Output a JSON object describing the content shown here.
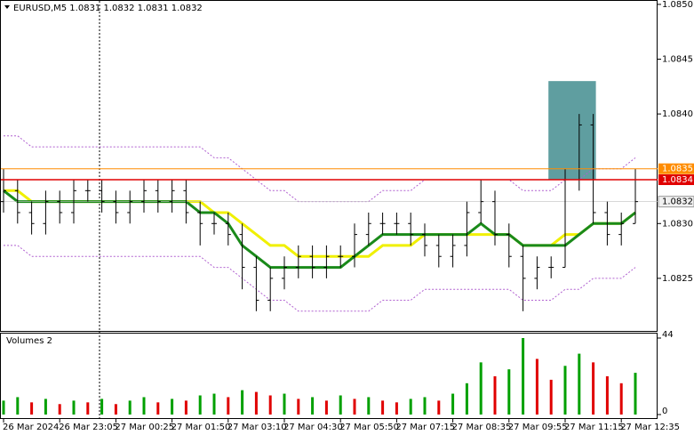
{
  "chart_data": {
    "type": "ohlc",
    "title": "EURUSD,M5  1.0831 1.0832 1.0831 1.0832",
    "categories": [
      "26 Mar 2024",
      null,
      null,
      null,
      "26 Mar 23:05",
      null,
      null,
      null,
      "27 Mar 00:25",
      null,
      null,
      null,
      "27 Mar 01:50",
      null,
      null,
      null,
      "27 Mar 03:10",
      null,
      null,
      null,
      "27 Mar 04:30",
      null,
      null,
      null,
      "27 Mar 05:50",
      null,
      null,
      null,
      "27 Mar 07:15",
      null,
      null,
      null,
      "27 Mar 08:35",
      null,
      null,
      null,
      "27 Mar 09:55",
      null,
      null,
      null,
      "27 Mar 11:15",
      null,
      null,
      null,
      "27 Mar 12:35",
      null
    ],
    "open": [
      1.0832,
      1.0833,
      1.0831,
      1.083,
      1.0832,
      1.0831,
      1.0833,
      1.0833,
      1.0832,
      1.0831,
      1.0832,
      1.0833,
      1.0832,
      1.0833,
      1.0831,
      1.083,
      1.083,
      1.0829,
      1.0826,
      1.0823,
      1.0825,
      1.0826,
      1.0827,
      1.0826,
      1.0827,
      1.0827,
      1.0829,
      1.083,
      1.083,
      1.083,
      1.0829,
      1.0828,
      1.0827,
      1.0828,
      1.0831,
      1.0832,
      1.0829,
      1.0827,
      1.0825,
      1.0826,
      1.0826,
      1.0834,
      1.0839,
      1.0831,
      1.0829,
      1.083
    ],
    "high": [
      1.0835,
      1.0834,
      1.0832,
      1.0833,
      1.0833,
      1.0834,
      1.0834,
      1.0834,
      1.0833,
      1.0833,
      1.0834,
      1.0834,
      1.0834,
      1.0834,
      1.0832,
      1.0831,
      1.0831,
      1.083,
      1.0827,
      1.0826,
      1.0827,
      1.0828,
      1.0828,
      1.0828,
      1.0828,
      1.083,
      1.0831,
      1.0831,
      1.0831,
      1.0831,
      1.083,
      1.0829,
      1.0829,
      1.0832,
      1.0834,
      1.0833,
      1.083,
      1.0828,
      1.0827,
      1.0827,
      1.0835,
      1.084,
      1.084,
      1.0832,
      1.0831,
      1.0835
    ],
    "low": [
      1.0831,
      1.083,
      1.0829,
      1.0829,
      1.083,
      1.083,
      1.0832,
      1.0831,
      1.083,
      1.083,
      1.0831,
      1.0831,
      1.0831,
      1.083,
      1.0828,
      1.0829,
      1.0828,
      1.0824,
      1.0822,
      1.0822,
      1.0824,
      1.0825,
      1.0825,
      1.0825,
      1.0826,
      1.0826,
      1.0828,
      1.0829,
      1.0829,
      1.0828,
      1.0827,
      1.0826,
      1.0826,
      1.0827,
      1.083,
      1.0828,
      1.0826,
      1.0822,
      1.0824,
      1.0825,
      1.0826,
      1.0833,
      1.083,
      1.0828,
      1.0828,
      1.083
    ],
    "close": [
      1.0833,
      1.0831,
      1.083,
      1.0832,
      1.0831,
      1.0833,
      1.0833,
      1.0832,
      1.0831,
      1.0832,
      1.0833,
      1.0832,
      1.0833,
      1.0831,
      1.083,
      1.083,
      1.0829,
      1.0826,
      1.0823,
      1.0825,
      1.0826,
      1.0827,
      1.0826,
      1.0827,
      1.0827,
      1.0829,
      1.083,
      1.083,
      1.083,
      1.0829,
      1.0828,
      1.0827,
      1.0828,
      1.0831,
      1.0832,
      1.0829,
      1.0827,
      1.0825,
      1.0826,
      1.0826,
      1.0834,
      1.0839,
      1.0831,
      1.0829,
      1.083,
      1.0832
    ],
    "bar_color": "#000000",
    "ma_lines": [
      {
        "color": "#f0f000",
        "width": 3,
        "values": [
          1.0833,
          1.0833,
          1.0832,
          1.0832,
          1.0832,
          1.0832,
          1.0832,
          1.0832,
          1.0832,
          1.0832,
          1.0832,
          1.0832,
          1.0832,
          1.0832,
          1.0832,
          1.0831,
          1.0831,
          1.083,
          1.0829,
          1.0828,
          1.0828,
          1.0827,
          1.0827,
          1.0827,
          1.0827,
          1.0827,
          1.0827,
          1.0828,
          1.0828,
          1.0828,
          1.0829,
          1.0829,
          1.0829,
          1.0829,
          1.0829,
          1.0829,
          1.0829,
          1.0828,
          1.0828,
          1.0828,
          1.0829,
          1.0829,
          1.083,
          1.083,
          1.083,
          1.0831
        ]
      },
      {
        "color": "#1a8a1a",
        "width": 3,
        "values": [
          1.0833,
          1.0832,
          1.0832,
          1.0832,
          1.0832,
          1.0832,
          1.0832,
          1.0832,
          1.0832,
          1.0832,
          1.0832,
          1.0832,
          1.0832,
          1.0832,
          1.0831,
          1.0831,
          1.083,
          1.0828,
          1.0827,
          1.0826,
          1.0826,
          1.0826,
          1.0826,
          1.0826,
          1.0826,
          1.0827,
          1.0828,
          1.0829,
          1.0829,
          1.0829,
          1.0829,
          1.0829,
          1.0829,
          1.0829,
          1.083,
          1.0829,
          1.0829,
          1.0828,
          1.0828,
          1.0828,
          1.0828,
          1.0829,
          1.083,
          1.083,
          1.083,
          1.0831
        ]
      },
      {
        "color": "#b060d0",
        "width": 1,
        "dashed": true,
        "values": [
          1.0838,
          1.0838,
          1.0837,
          1.0837,
          1.0837,
          1.0837,
          1.0837,
          1.0837,
          1.0837,
          1.0837,
          1.0837,
          1.0837,
          1.0837,
          1.0837,
          1.0837,
          1.0836,
          1.0836,
          1.0835,
          1.0834,
          1.0833,
          1.0833,
          1.0832,
          1.0832,
          1.0832,
          1.0832,
          1.0832,
          1.0832,
          1.0833,
          1.0833,
          1.0833,
          1.0834,
          1.0834,
          1.0834,
          1.0834,
          1.0834,
          1.0834,
          1.0834,
          1.0833,
          1.0833,
          1.0833,
          1.0834,
          1.0834,
          1.0835,
          1.0835,
          1.0835,
          1.0836
        ]
      },
      {
        "color": "#b060d0",
        "width": 1,
        "dashed": true,
        "values": [
          1.0828,
          1.0828,
          1.0827,
          1.0827,
          1.0827,
          1.0827,
          1.0827,
          1.0827,
          1.0827,
          1.0827,
          1.0827,
          1.0827,
          1.0827,
          1.0827,
          1.0827,
          1.0826,
          1.0826,
          1.0825,
          1.0824,
          1.0823,
          1.0823,
          1.0822,
          1.0822,
          1.0822,
          1.0822,
          1.0822,
          1.0822,
          1.0823,
          1.0823,
          1.0823,
          1.0824,
          1.0824,
          1.0824,
          1.0824,
          1.0824,
          1.0824,
          1.0824,
          1.0823,
          1.0823,
          1.0823,
          1.0824,
          1.0824,
          1.0825,
          1.0825,
          1.0825,
          1.0826
        ]
      }
    ],
    "zone": {
      "from": 39,
      "to": 42,
      "low": 1.0834,
      "high": 1.0843,
      "color": "#5f9ea0"
    },
    "lines": [
      {
        "value": 1.0835,
        "color": "#ff8c00"
      },
      {
        "value": 1.0834,
        "color": "#e00000"
      }
    ],
    "last_price": 1.0832,
    "ylim": [
      1.08202,
      1.08504
    ],
    "yticks": [
      {
        "value": 1.085,
        "label": "1.0850"
      },
      1.0845,
      {
        "value": 1.084,
        "label": "1.0840"
      },
      {
        "value": 1.083,
        "label": "1.0830"
      },
      1.0825
    ],
    "volumes": {
      "title": "Volumes 2",
      "values": [
        8,
        10,
        7,
        9,
        6,
        8,
        7,
        9,
        6,
        8,
        10,
        7,
        9,
        8,
        11,
        12,
        10,
        14,
        13,
        11,
        12,
        9,
        10,
        8,
        11,
        9,
        10,
        8,
        7,
        9,
        10,
        8,
        12,
        18,
        30,
        22,
        26,
        44,
        32,
        20,
        28,
        35,
        30,
        22,
        18,
        24
      ],
      "ylim": [
        0,
        44
      ],
      "yticks": [
        0,
        44
      ],
      "up_color": "#00a000",
      "down_color": "#e00000"
    }
  }
}
